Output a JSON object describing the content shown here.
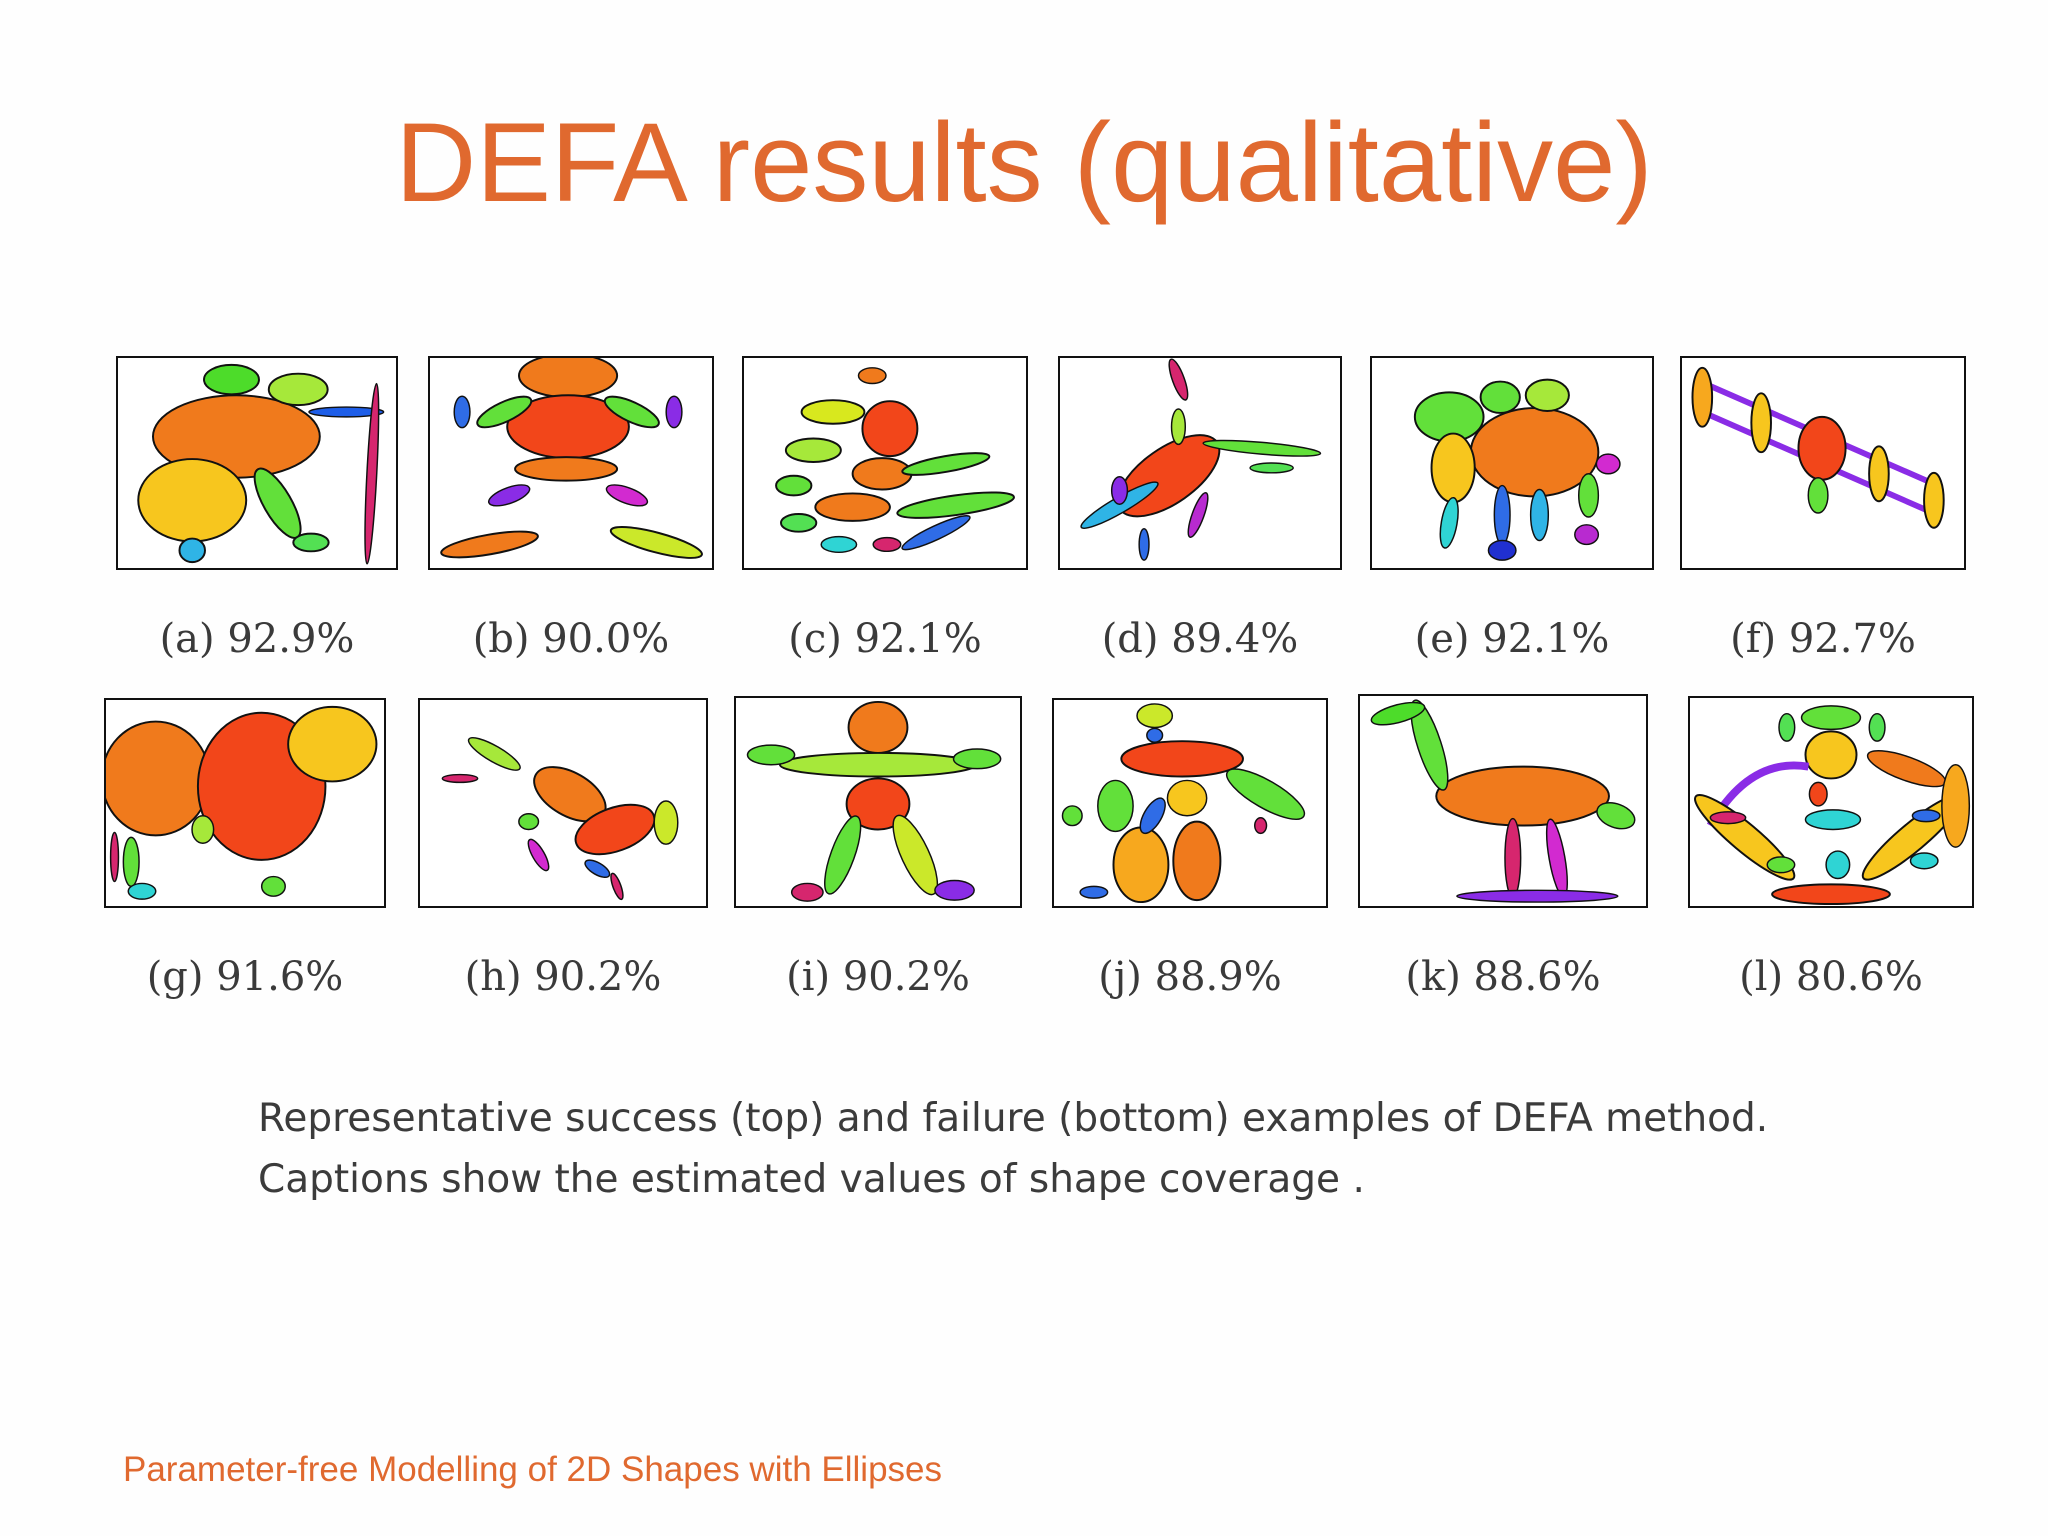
{
  "slide": {
    "title": "DEFA results (qualitative)",
    "description_lines": [
      "Representative success (top) and failure (bottom) examples of DEFA method.",
      "Captions show the estimated values of shape coverage ."
    ],
    "footer": "Parameter-free Modelling of 2D Shapes with Ellipses"
  },
  "figures": [
    {
      "id": "a",
      "caption": "(a) 92.9%"
    },
    {
      "id": "b",
      "caption": "(b) 90.0%"
    },
    {
      "id": "c",
      "caption": "(c) 92.1%"
    },
    {
      "id": "d",
      "caption": "(d) 89.4%"
    },
    {
      "id": "e",
      "caption": "(e) 92.1%"
    },
    {
      "id": "f",
      "caption": "(f) 92.7%"
    },
    {
      "id": "g",
      "caption": "(g) 91.6%"
    },
    {
      "id": "h",
      "caption": "(h) 90.2%"
    },
    {
      "id": "i",
      "caption": "(i) 90.2%"
    },
    {
      "id": "j",
      "caption": "(j) 88.9%"
    },
    {
      "id": "k",
      "caption": "(k) 88.6%"
    },
    {
      "id": "l",
      "caption": "(l) 80.6%"
    }
  ],
  "colors": {
    "accent": "#e0692f",
    "text": "#3b3b3b"
  }
}
